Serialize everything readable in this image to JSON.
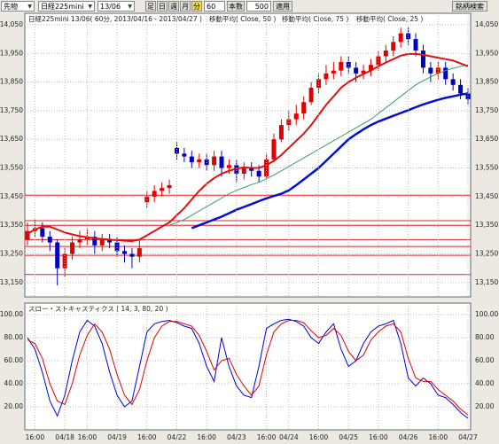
{
  "toolbar": {
    "market": "先物",
    "symbol": "日経225mini",
    "contract": "13/06",
    "bar_label": "足",
    "periods": [
      "日",
      "週",
      "月",
      "分"
    ],
    "interval": 60,
    "count_label": "本数",
    "count": 500,
    "apply": "適用",
    "search": "銘柄検索"
  },
  "chart_data": [
    {
      "type": "candlestick",
      "title": "日経225mini 13/06( 60分, 2013/04/16 - 2013/04/27 )",
      "up_color": "#e00000",
      "down_color": "#0000c0",
      "open": [
        13300,
        13330,
        13340,
        13310,
        13290,
        13200,
        13250,
        13290,
        13300,
        13310,
        13280,
        13300,
        13290,
        13260,
        13250,
        13240,
        13430,
        13450,
        13470,
        13480,
        13620,
        13600,
        13590,
        13570,
        13580,
        13560,
        13590,
        13550,
        13560,
        13530,
        13550,
        13540,
        13520,
        13580,
        13650,
        13700,
        13720,
        13740,
        13780,
        13830,
        13860,
        13880,
        13890,
        13920,
        13900,
        13880,
        13890,
        13910,
        13940,
        13960,
        13990,
        14020,
        14000,
        13960,
        13900,
        13880,
        13900,
        13860,
        13840,
        13810
      ],
      "high": [
        13360,
        13370,
        13360,
        13330,
        13300,
        13270,
        13310,
        13330,
        13340,
        13330,
        13320,
        13320,
        13310,
        13280,
        13270,
        13300,
        13470,
        13490,
        13500,
        13510,
        13640,
        13620,
        13610,
        13600,
        13600,
        13610,
        13610,
        13580,
        13580,
        13570,
        13570,
        13560,
        13600,
        13670,
        13720,
        13750,
        13770,
        13800,
        13850,
        13880,
        13910,
        13920,
        13940,
        13940,
        13920,
        13910,
        13930,
        13960,
        13980,
        14010,
        14040,
        14040,
        14020,
        13980,
        13920,
        13920,
        13920,
        13880,
        13860,
        13830
      ],
      "low": [
        13280,
        13310,
        13290,
        13260,
        13140,
        13170,
        13230,
        13270,
        13280,
        13250,
        13260,
        13270,
        13240,
        13220,
        13200,
        13220,
        13410,
        13430,
        13450,
        13460,
        13580,
        13570,
        13550,
        13550,
        13540,
        13540,
        13520,
        13530,
        13500,
        13510,
        13520,
        13500,
        13510,
        13570,
        13640,
        13680,
        13700,
        13720,
        13770,
        13810,
        13840,
        13860,
        13870,
        13880,
        13850,
        13860,
        13870,
        13890,
        13920,
        13940,
        13970,
        13980,
        13940,
        13880,
        13850,
        13860,
        13840,
        13820,
        13790,
        13770
      ],
      "close": [
        13330,
        13340,
        13310,
        13290,
        13200,
        13250,
        13290,
        13300,
        13310,
        13280,
        13300,
        13290,
        13260,
        13250,
        13240,
        13270,
        13450,
        13470,
        13480,
        13490,
        13600,
        13590,
        13570,
        13580,
        13560,
        13590,
        13550,
        13560,
        13530,
        13550,
        13540,
        13520,
        13580,
        13650,
        13700,
        13720,
        13740,
        13780,
        13830,
        13860,
        13880,
        13890,
        13920,
        13900,
        13880,
        13890,
        13910,
        13940,
        13960,
        13990,
        14020,
        14000,
        13960,
        13900,
        13880,
        13900,
        13860,
        13840,
        13810,
        13790
      ],
      "series": [
        {
          "name": "移動平均( Close, 50 )",
          "color": "#3a9a6a",
          "width": 1,
          "values": [
            null,
            null,
            null,
            null,
            null,
            null,
            null,
            null,
            null,
            null,
            null,
            null,
            null,
            null,
            null,
            null,
            null,
            null,
            null,
            13350,
            13360,
            13370,
            13385,
            13400,
            13415,
            13430,
            13445,
            13460,
            13472,
            13482,
            13492,
            13500,
            13512,
            13525,
            13540,
            13555,
            13570,
            13585,
            13600,
            13615,
            13630,
            13645,
            13660,
            13675,
            13690,
            13705,
            13720,
            13740,
            13760,
            13780,
            13800,
            13820,
            13840,
            13855,
            13868,
            13880,
            13890,
            13898,
            13905,
            13910
          ]
        },
        {
          "name": "移動平均( Close, 75 )",
          "color": "#0010d0",
          "width": 2.5,
          "values": [
            null,
            null,
            null,
            null,
            null,
            null,
            null,
            null,
            null,
            null,
            null,
            null,
            null,
            null,
            null,
            null,
            null,
            null,
            null,
            null,
            null,
            null,
            13340,
            13350,
            13360,
            13370,
            13380,
            13392,
            13404,
            13414,
            13424,
            13434,
            13444,
            13452,
            13460,
            13472,
            13490,
            13510,
            13530,
            13550,
            13575,
            13600,
            13625,
            13650,
            13668,
            13685,
            13700,
            13712,
            13722,
            13732,
            13742,
            13752,
            13762,
            13772,
            13780,
            13788,
            13795,
            13800,
            13806,
            13810
          ]
        },
        {
          "name": "移動平均( Close, 25 )",
          "color": "#e01010",
          "width": 2,
          "values": [
            13320,
            13335,
            13345,
            13345,
            13335,
            13325,
            13318,
            13312,
            13308,
            13305,
            13302,
            13300,
            13298,
            13296,
            13295,
            13300,
            13315,
            13330,
            13345,
            13360,
            13385,
            13410,
            13440,
            13470,
            13495,
            13515,
            13530,
            13540,
            13548,
            13552,
            13550,
            13550,
            13560,
            13575,
            13595,
            13620,
            13645,
            13670,
            13700,
            13735,
            13770,
            13800,
            13830,
            13850,
            13865,
            13878,
            13890,
            13905,
            13918,
            13930,
            13942,
            13948,
            13948,
            13945,
            13940,
            13935,
            13930,
            13925,
            13915,
            13905
          ]
        }
      ],
      "hlines": [
        13455,
        13366,
        13350,
        13300,
        13276,
        13245,
        13178
      ],
      "hline_color": "#e02020",
      "ylim": [
        13100,
        14090
      ],
      "yticks": [
        {
          "value": 14050,
          "label": "14,050"
        },
        {
          "value": 13950,
          "label": "13,950"
        },
        {
          "value": 13850,
          "label": "13,850"
        },
        {
          "value": 13750,
          "label": "13,750"
        },
        {
          "value": 13650,
          "label": "13,650"
        },
        {
          "value": 13550,
          "label": "13,550"
        },
        {
          "value": 13450,
          "label": "13,450"
        },
        {
          "value": 13350,
          "label": "13,350"
        },
        {
          "value": 13250,
          "label": "13,250"
        },
        {
          "value": 13150,
          "label": "13,150"
        }
      ],
      "grid": true
    },
    {
      "type": "line",
      "title": "スロー・ストキャスティクス ( 14, 3, 80, 20 )",
      "categories": [
        null,
        "16:00",
        null,
        null,
        null,
        "04/18",
        null,
        null,
        "16:00",
        null,
        null,
        null,
        "04/19",
        null,
        null,
        null,
        "16:00",
        null,
        null,
        null,
        "04/22",
        null,
        null,
        null,
        "16:00",
        null,
        null,
        null,
        "04/23",
        null,
        null,
        null,
        "16:00",
        null,
        null,
        "04/24",
        null,
        null,
        null,
        "16:00",
        null,
        null,
        null,
        "04/25",
        null,
        null,
        null,
        "16:00",
        null,
        null,
        null,
        "04/26",
        null,
        null,
        null,
        "16:00",
        null,
        null,
        null,
        "04/27"
      ],
      "series": [
        {
          "color": "#0000e0",
          "values": [
            80,
            70,
            50,
            25,
            12,
            30,
            60,
            85,
            95,
            90,
            75,
            50,
            30,
            20,
            25,
            55,
            85,
            92,
            94,
            95,
            93,
            90,
            88,
            75,
            55,
            42,
            80,
            55,
            38,
            30,
            28,
            55,
            88,
            92,
            95,
            96,
            94,
            90,
            80,
            75,
            85,
            92,
            70,
            55,
            60,
            75,
            85,
            90,
            92,
            95,
            75,
            45,
            38,
            45,
            40,
            30,
            28,
            22,
            15,
            10
          ]
        },
        {
          "color": "#e00000",
          "values": [
            78,
            75,
            62,
            40,
            25,
            22,
            40,
            65,
            82,
            92,
            85,
            70,
            48,
            30,
            22,
            35,
            60,
            80,
            90,
            94,
            94,
            92,
            90,
            82,
            68,
            52,
            60,
            62,
            48,
            38,
            30,
            38,
            65,
            85,
            92,
            95,
            95,
            93,
            86,
            80,
            82,
            88,
            82,
            68,
            60,
            65,
            78,
            85,
            90,
            92,
            85,
            62,
            45,
            42,
            42,
            35,
            30,
            25,
            18,
            13
          ]
        }
      ],
      "ylim": [
        0,
        110
      ],
      "yticks": [
        {
          "value": 100,
          "label": "100.00"
        },
        {
          "value": 80,
          "label": "80.00"
        },
        {
          "value": 60,
          "label": "60.00"
        },
        {
          "value": 40,
          "label": "40.00"
        },
        {
          "value": 20,
          "label": "20.00"
        }
      ],
      "grid": true
    }
  ]
}
